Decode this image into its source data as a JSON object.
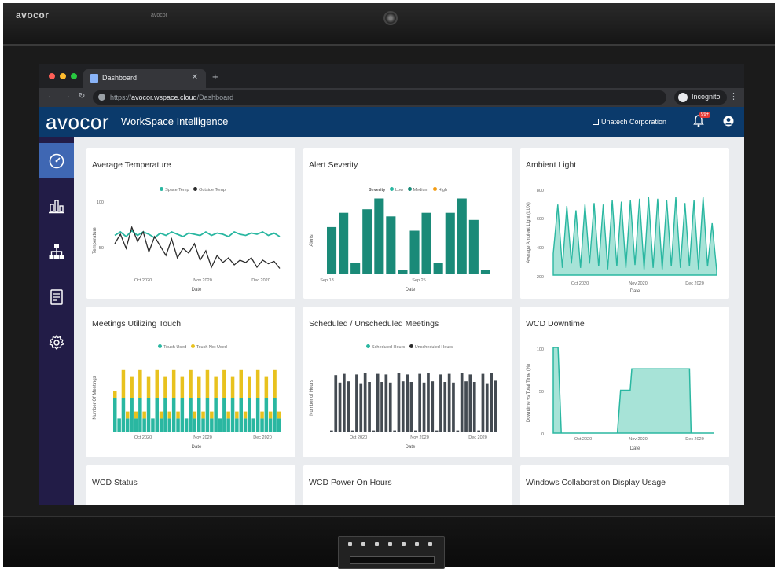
{
  "bezel": {
    "brand": "avocor",
    "model_mark": "avocor"
  },
  "browser": {
    "tab_label": "Dashboard",
    "new_tab": "+",
    "url_prefix": "https://",
    "url_host": "avocor.wspace.cloud",
    "url_path": "/Dashboard",
    "incognito_label": "Incognito"
  },
  "app": {
    "logo": "avocor",
    "product": "WorkSpace Intelligence",
    "organization": "Unatech Corporation",
    "notification_badge": "99+"
  },
  "colors": {
    "teal": "#2ab7a1",
    "teal_dark": "#1a8a78",
    "black": "#2b2b2b",
    "yellow": "#e8c21e",
    "orange": "#f39c12",
    "slate": "#444b52",
    "header": "#0b3a6b",
    "sidebar": "#221c47"
  },
  "sidebar": {
    "items": [
      {
        "icon": "gauge-icon",
        "active": true
      },
      {
        "icon": "bar-chart-icon",
        "active": false
      },
      {
        "icon": "org-tree-icon",
        "active": false
      },
      {
        "icon": "report-icon",
        "active": false
      },
      {
        "icon": "gear-icon",
        "active": false
      }
    ]
  },
  "cards": {
    "avg_temp": {
      "title": "Average Temperature",
      "legend": [
        "Space Temp",
        "Outside Temp"
      ],
      "ylabel": "Temperature",
      "xlabel": "Date",
      "yticks": [
        "100",
        "50"
      ],
      "xticks": [
        "Oct 2020",
        "Nov 2020",
        "Dec 2020"
      ]
    },
    "alert_severity": {
      "title": "Alert Severity",
      "legend_title": "Severity",
      "legend": [
        "Low",
        "Medium",
        "High"
      ],
      "ylabel": "Alerts",
      "xlabel": "Date",
      "xticks": [
        "Sep 18",
        "Sep 25"
      ]
    },
    "ambient_light": {
      "title": "Ambient Light",
      "ylabel": "Average Ambient Light (LUX)",
      "xlabel": "Date",
      "yticks": [
        "800",
        "600",
        "400",
        "200"
      ],
      "xticks": [
        "Oct 2020",
        "Nov 2020",
        "Dec 2020"
      ]
    },
    "touch": {
      "title": "Meetings Utilizing Touch",
      "legend": [
        "Touch Used",
        "Touch Not Used"
      ],
      "ylabel": "Number Of Meetings",
      "xlabel": "Date",
      "xticks": [
        "Oct 2020",
        "Nov 2020",
        "Dec 2020"
      ]
    },
    "scheduled": {
      "title": "Scheduled / Unscheduled Meetings",
      "legend": [
        "Scheduled Hours",
        "Unscheduled Hours"
      ],
      "ylabel": "Number of Hours",
      "xlabel": "Date",
      "xticks": [
        "Oct 2020",
        "Nov 2020",
        "Dec 2020"
      ]
    },
    "downtime": {
      "title": "WCD Downtime",
      "ylabel": "Downtime vs Total Time (%)",
      "xlabel": "Date",
      "yticks": [
        "100",
        "50",
        "0"
      ],
      "xticks": [
        "Oct 2020",
        "Nov 2020",
        "Dec 2020"
      ]
    },
    "wcd_status": {
      "title": "WCD Status"
    },
    "power_on": {
      "title": "WCD Power On Hours"
    },
    "usage": {
      "title": "Windows Collaboration Display Usage"
    }
  },
  "chart_data": [
    {
      "type": "line",
      "title": "Average Temperature",
      "xlabel": "Date",
      "ylabel": "Temperature",
      "ylim": [
        30,
        110
      ],
      "series": [
        {
          "name": "Space Temp",
          "values": [
            69,
            72,
            68,
            73,
            69,
            72,
            70,
            67,
            71,
            69,
            72,
            70,
            68,
            71,
            70,
            69,
            72,
            69,
            71,
            70,
            68,
            72,
            70,
            69,
            71,
            70,
            72,
            69,
            71,
            68
          ]
        },
        {
          "name": "Outside Temp",
          "values": [
            62,
            70,
            58,
            76,
            64,
            72,
            55,
            68,
            60,
            52,
            66,
            50,
            58,
            54,
            62,
            48,
            56,
            42,
            52,
            46,
            50,
            44,
            48,
            46,
            50,
            42,
            48,
            45,
            47,
            41
          ]
        }
      ]
    },
    {
      "type": "bar",
      "title": "Alert Severity",
      "xlabel": "Date",
      "ylabel": "Alerts",
      "ylim": [
        0,
        22
      ],
      "categories": [
        "Sep 18",
        "",
        "",
        "",
        "",
        "",
        "",
        "Sep 25",
        "",
        "",
        "",
        "",
        "",
        "",
        ""
      ],
      "series": [
        {
          "name": "Low",
          "values": [
            0,
            0,
            0,
            0,
            0,
            0,
            0,
            0,
            0,
            0,
            0,
            0,
            0,
            0,
            0
          ]
        },
        {
          "name": "Medium",
          "values": [
            13,
            17,
            3,
            18,
            21,
            16,
            1,
            12,
            17,
            3,
            17,
            21,
            15,
            1,
            0
          ]
        },
        {
          "name": "High",
          "values": [
            0,
            0,
            0,
            0,
            0,
            0,
            0,
            0,
            0,
            0,
            0,
            0,
            0,
            0,
            0
          ]
        }
      ]
    },
    {
      "type": "area",
      "title": "Ambient Light",
      "xlabel": "Date",
      "ylabel": "Average Ambient Light (LUX)",
      "ylim": [
        200,
        800
      ],
      "series": [
        {
          "name": "Ambient Light",
          "values": [
            350,
            690,
            250,
            680,
            280,
            650,
            250,
            690,
            280,
            700,
            260,
            690,
            240,
            720,
            260,
            710,
            250,
            720,
            270,
            730,
            240,
            740,
            250,
            730,
            240,
            720,
            260,
            740,
            250,
            700,
            260,
            720,
            240,
            740,
            260,
            560,
            230
          ]
        }
      ]
    },
    {
      "type": "bar",
      "title": "Meetings Utilizing Touch",
      "xlabel": "Date",
      "ylabel": "Number Of Meetings",
      "ylim": [
        0,
        10
      ],
      "series": [
        {
          "name": "Touch Used",
          "values": [
            5,
            2,
            5,
            2,
            5,
            2,
            5,
            2,
            5,
            2,
            5,
            2,
            5,
            2,
            5,
            2,
            5,
            2,
            5,
            2,
            5,
            2,
            5,
            2,
            5,
            2,
            5,
            2,
            5,
            2,
            5,
            2,
            5,
            2,
            5,
            2,
            5,
            2,
            5,
            2
          ]
        },
        {
          "name": "Touch Not Used",
          "values": [
            1,
            0,
            4,
            1,
            3,
            1,
            4,
            1,
            3,
            0,
            4,
            1,
            3,
            1,
            4,
            1,
            3,
            0,
            4,
            1,
            3,
            1,
            4,
            1,
            3,
            0,
            4,
            1,
            3,
            1,
            4,
            1,
            3,
            0,
            4,
            1,
            3,
            1,
            4,
            1
          ]
        }
      ]
    },
    {
      "type": "bar",
      "title": "Scheduled / Unscheduled Meetings",
      "xlabel": "Date",
      "ylabel": "Number of Hours",
      "ylim": [
        0,
        10
      ],
      "series": [
        {
          "name": "Scheduled Hours",
          "values": [
            0,
            0,
            0,
            0,
            0,
            0,
            0,
            0,
            0,
            0,
            0,
            0,
            0,
            0,
            0,
            0,
            0,
            0,
            0,
            0,
            0,
            0,
            0,
            0,
            0,
            0,
            0,
            0,
            0,
            0,
            0,
            0,
            0,
            0,
            0,
            0,
            0,
            0,
            0,
            0
          ]
        },
        {
          "name": "Unscheduled Hours",
          "values": [
            0.3,
            9.1,
            7.9,
            9.3,
            8.1,
            0.3,
            9.2,
            7.8,
            9.4,
            8.0,
            0.3,
            9.3,
            8.0,
            9.2,
            7.9,
            0.3,
            9.4,
            8.1,
            9.2,
            8.0,
            0.3,
            9.3,
            7.9,
            9.4,
            8.1,
            0.3,
            9.2,
            8.0,
            9.3,
            7.9,
            0.3,
            9.4,
            8.1,
            9.2,
            8.0,
            0.3,
            9.3,
            7.8,
            9.4,
            8.2
          ]
        }
      ]
    },
    {
      "type": "area",
      "title": "WCD Downtime",
      "xlabel": "Date",
      "ylabel": "Downtime vs Total Time (%)",
      "ylim": [
        0,
        100
      ],
      "series": [
        {
          "name": "Downtime",
          "points": [
            [
              0,
              100
            ],
            [
              0.03,
              100
            ],
            [
              0.05,
              0
            ],
            [
              0.4,
              0
            ],
            [
              0.42,
              50
            ],
            [
              0.48,
              50
            ],
            [
              0.49,
              75
            ],
            [
              0.85,
              75
            ],
            [
              0.86,
              0
            ],
            [
              1,
              0
            ]
          ]
        }
      ]
    }
  ]
}
